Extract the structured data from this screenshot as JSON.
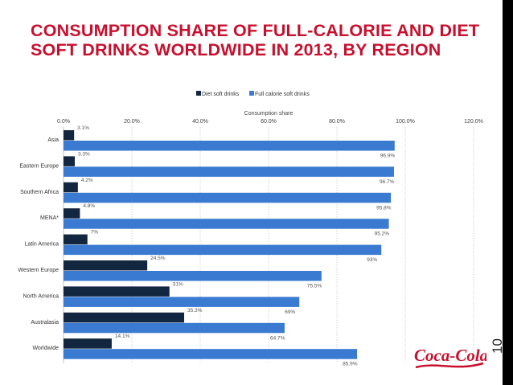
{
  "slide": {
    "title": "CONSUMPTION SHARE OF FULL-CALORIE AND DIET SOFT DRINKS WORLDWIDE IN 2013, BY REGION",
    "page_number": "10",
    "logo_text": "Coca-Cola",
    "colors": {
      "title": "#c8102e",
      "right_bar": "#000000"
    }
  },
  "chart_data": {
    "type": "bar",
    "orientation": "horizontal",
    "title": "",
    "xlabel": "Consumption share",
    "ylabel": "",
    "xlim": [
      0,
      120
    ],
    "xticks": [
      0,
      20,
      40,
      60,
      80,
      100,
      120
    ],
    "xtick_labels": [
      "0.0%",
      "20.0%",
      "40.0%",
      "60.0%",
      "80.0%",
      "100.0%",
      "120.0%"
    ],
    "grid": true,
    "legend_position": "top",
    "categories": [
      "Asia",
      "Eastern Europe",
      "Southern Africa",
      "MENA*",
      "Latin America",
      "Western Europe",
      "North America",
      "Australasia",
      "Worldwide"
    ],
    "series": [
      {
        "name": "Diet soft drinks",
        "color": "#13263f",
        "values": [
          3.1,
          3.3,
          4.2,
          4.8,
          7,
          24.5,
          31,
          35.3,
          14.1
        ],
        "labels": [
          "3.1%",
          "3.3%",
          "4.2%",
          "4.8%",
          "7%",
          "24.5%",
          "31%",
          "35.3%",
          "14.1%"
        ]
      },
      {
        "name": "Full calorie soft drinks",
        "color": "#3a7ad1",
        "values": [
          96.9,
          96.7,
          95.8,
          95.2,
          93,
          75.5,
          69,
          64.7,
          85.9
        ],
        "labels": [
          "96.9%",
          "96.7%",
          "95.8%",
          "95.2%",
          "93%",
          "75.5%",
          "69%",
          "64.7%",
          "85.9%"
        ]
      }
    ]
  }
}
